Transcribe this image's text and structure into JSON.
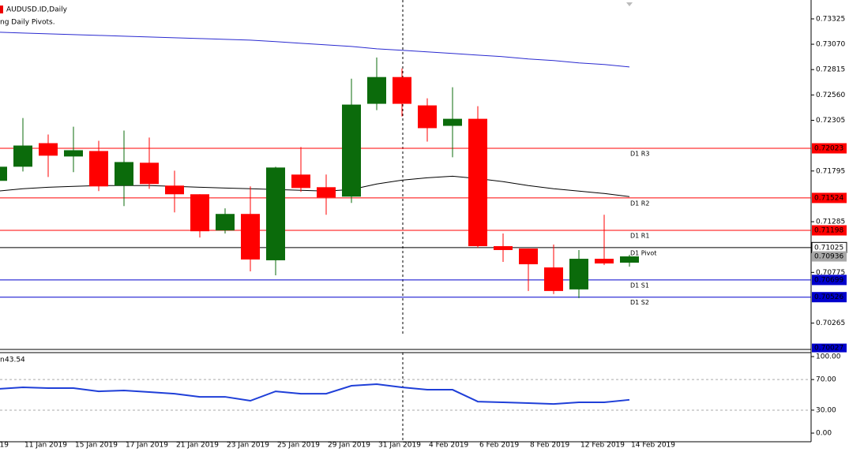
{
  "chart_data": [
    {
      "type": "candlestick",
      "title": "AUDUSD.ID,Daily",
      "subtitle": "ng Daily Pivots.",
      "x_edge_label": "19",
      "categories": [
        null,
        "11 Jan 2019",
        null,
        "15 Jan 2019",
        null,
        "17 Jan 2019",
        null,
        "21 Jan 2019",
        null,
        "23 Jan 2019",
        null,
        "25 Jan 2019",
        null,
        "29 Jan 2019",
        null,
        "31 Jan 2019",
        null,
        "4 Feb 2019",
        null,
        "6 Feb 2019",
        null,
        "8 Feb 2019",
        null,
        "12 Feb 2019",
        null,
        "14 Feb 2019"
      ],
      "open": [
        0.71696,
        0.71838,
        0.72075,
        0.71941,
        0.71996,
        0.71648,
        0.71878,
        0.71648,
        0.71561,
        0.71197,
        0.71363,
        0.70897,
        0.71759,
        0.71632,
        0.71537,
        0.72471,
        0.7274,
        0.72455,
        0.72249,
        0.7232,
        0.71039,
        0.71015,
        0.70825,
        0.70604,
        0.70912,
        0.70873
      ],
      "high": [
        0.71893,
        0.72328,
        0.72162,
        0.72241,
        0.72099,
        0.72202,
        0.72131,
        0.71798,
        0.71561,
        0.71419,
        0.7164,
        0.71838,
        0.72036,
        0.71759,
        0.72724,
        0.72937,
        0.72827,
        0.72526,
        0.72637,
        0.72447,
        0.71166,
        0.71015,
        0.71055,
        0.71,
        0.71355,
        0.70952
      ],
      "low": [
        0.71656,
        0.7179,
        0.71735,
        0.71783,
        0.71593,
        0.71442,
        0.71616,
        0.71379,
        0.71126,
        0.71166,
        0.70786,
        0.70746,
        0.71585,
        0.71355,
        0.71474,
        0.72407,
        0.72344,
        0.72091,
        0.71933,
        0.71023,
        0.70881,
        0.70588,
        0.70557,
        0.70517,
        0.70849,
        0.70833
      ],
      "close": [
        0.71838,
        0.72051,
        0.71949,
        0.72004,
        0.7164,
        0.71885,
        0.71664,
        0.71561,
        0.71189,
        0.71363,
        0.70905,
        0.7183,
        0.71624,
        0.71529,
        0.72463,
        0.7274,
        0.72471,
        0.72226,
        0.7232,
        0.71039,
        0.71,
        0.70857,
        0.70588,
        0.70912,
        0.70865,
        0.70936
      ],
      "up_color": "#0b6b0b",
      "down_color": "#ff0000",
      "series": [
        {
          "color": "#2a2ad0",
          "values": [
            0.73191,
            0.73183,
            0.73175,
            0.73167,
            0.73159,
            0.73151,
            0.73143,
            0.73135,
            0.73127,
            0.73119,
            0.73111,
            0.73096,
            0.7308,
            0.73064,
            0.73048,
            0.73024,
            0.73009,
            0.72993,
            0.72977,
            0.72961,
            0.72945,
            0.72922,
            0.72906,
            0.72882,
            0.72866,
            0.72842
          ]
        },
        {
          "color": "#000000",
          "values": [
            0.71593,
            0.71617,
            0.71632,
            0.7164,
            0.71648,
            0.71648,
            0.71648,
            0.7164,
            0.71632,
            0.71624,
            0.71617,
            0.71609,
            0.71601,
            0.71593,
            0.71609,
            0.71664,
            0.71703,
            0.71727,
            0.71743,
            0.71719,
            0.71688,
            0.71648,
            0.71617,
            0.71593,
            0.71569,
            0.71537
          ]
        }
      ],
      "hlines": [
        {
          "name": "D1 R3",
          "value": 0.72023,
          "color": "#ff0000"
        },
        {
          "name": "D1 R2",
          "value": 0.71524,
          "color": "#ff0000"
        },
        {
          "name": "D1 R1",
          "value": 0.71198,
          "color": "#ff0000"
        },
        {
          "name": "D1 Pivot",
          "value": 0.71025,
          "color": "#000000"
        },
        {
          "name": "D1 S1",
          "value": 0.70699,
          "color": "#0000cd"
        },
        {
          "name": "D1 S2",
          "value": 0.70526,
          "color": "#0000cd"
        }
      ],
      "edge_marker": {
        "value": 0.70027,
        "color": "#0000cd"
      },
      "ylim": [
        0.7,
        0.73515
      ],
      "yticks": [
        {
          "value": 0.73325,
          "label": "0.73325"
        },
        {
          "value": 0.7307,
          "label": "0.73070"
        },
        {
          "value": 0.72815,
          "label": "0.72815"
        },
        {
          "value": 0.7256,
          "label": "0.72560"
        },
        {
          "value": 0.72305,
          "label": "0.72305"
        },
        {
          "value": 0.71795,
          "label": "0.71795"
        },
        {
          "value": 0.71285,
          "label": "0.71285"
        },
        {
          "value": 0.70775,
          "label": "0.70775"
        },
        {
          "value": 0.70265,
          "label": "0.70265"
        }
      ]
    },
    {
      "type": "line",
      "title": "n",
      "color": "#1f3fd8",
      "values": [
        57.7,
        59.8,
        58.8,
        58.8,
        54.6,
        55.7,
        53.6,
        51.5,
        47.4,
        47.4,
        42.3,
        54.6,
        51.5,
        51.5,
        61.9,
        63.9,
        59.8,
        56.7,
        56.7,
        41.2,
        40.2,
        39.2,
        38.1,
        40.2,
        40.2,
        43.54
      ],
      "ylim": [
        -11.3,
        105.2
      ],
      "yticks": [
        {
          "value": 100,
          "label": "100.00"
        },
        {
          "value": 70,
          "label": "70.00"
        },
        {
          "value": 30,
          "label": "30.00"
        },
        {
          "value": 0,
          "label": "0.00"
        }
      ]
    }
  ]
}
